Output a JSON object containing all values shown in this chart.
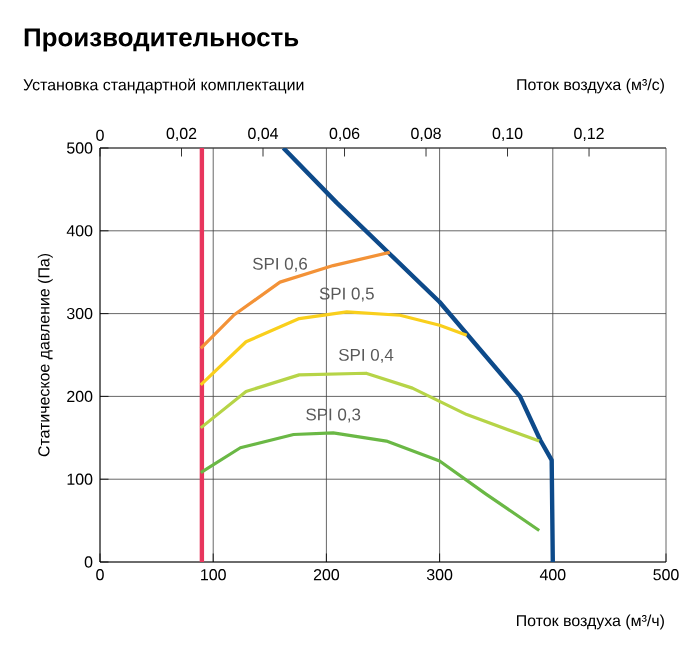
{
  "chart_data": {
    "type": "line",
    "title": "Производительность",
    "subtitle": "Установка стандартной комплектации",
    "xlabel": "Поток воздуха (м³/ч)",
    "ylabel": "Статическое давление (Па)",
    "x2label": "Поток воздуха (м³/с)",
    "xlim": [
      0,
      500
    ],
    "xticks": [
      0,
      100,
      200,
      300,
      400,
      500
    ],
    "ylim": [
      0,
      500
    ],
    "yticks": [
      0,
      100,
      200,
      300,
      400,
      500
    ],
    "x2lim": [
      0,
      0.13889
    ],
    "x2ticks": [
      0,
      {
        "value": 0.02,
        "label": "0,02"
      },
      {
        "value": 0.04,
        "label": "0,04"
      },
      {
        "value": 0.06,
        "label": "0,06"
      },
      {
        "value": 0.08,
        "label": "0,08"
      },
      {
        "value": 0.1,
        "label": "0,10"
      },
      {
        "value": 0.12,
        "label": "0,12"
      }
    ],
    "grid": true,
    "legend": false,
    "marker": "none",
    "line_style": "solid",
    "ref_lines": [
      {
        "axis": "x",
        "value": 90,
        "color": "#e8365d"
      }
    ],
    "series": [
      {
        "color": "#0d4a8a",
        "x": [
          162,
          209,
          256,
          300,
          371,
          389,
          399,
          400
        ],
        "values": [
          500,
          434,
          372,
          314,
          200,
          147,
          123,
          0
        ]
      },
      {
        "name": "SPI 0,6",
        "color": "#f39237",
        "x": [
          89,
          118,
          159,
          206,
          256
        ],
        "values": [
          258,
          298,
          338,
          358,
          374
        ]
      },
      {
        "name": "SPI 0,5",
        "color": "#f9cf1c",
        "x": [
          89,
          129,
          176,
          218,
          265,
          300,
          324
        ],
        "values": [
          214,
          266,
          294,
          302,
          298,
          286,
          274
        ]
      },
      {
        "name": "SPI 0,4",
        "color": "#b6d447",
        "x": [
          89,
          129,
          176,
          235,
          276,
          324,
          388
        ],
        "values": [
          162,
          206,
          226,
          228,
          210,
          178,
          146
        ]
      },
      {
        "name": "SPI 0,3",
        "color": "#6ab845",
        "x": [
          89,
          124,
          171,
          206,
          253,
          300,
          341,
          388
        ],
        "values": [
          108,
          138,
          154,
          156,
          146,
          122,
          82,
          38
        ]
      }
    ]
  }
}
